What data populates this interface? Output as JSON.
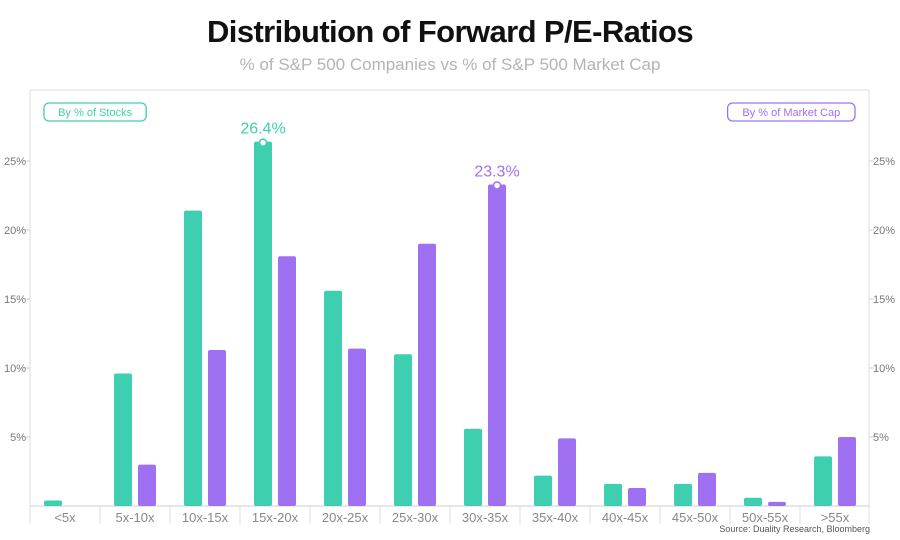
{
  "title": "Distribution of Forward P/E-Ratios",
  "subtitle": "% of S&P 500 Companies vs % of S&P 500 Market Cap",
  "source": "Source: Duality Research, Bloomberg",
  "colors": {
    "stocks": "#3ecfb0",
    "market_cap": "#a070f3"
  },
  "chart_data": {
    "type": "bar",
    "categories": [
      "<5x",
      "5x-10x",
      "10x-15x",
      "15x-20x",
      "20x-25x",
      "25x-30x",
      "30x-35x",
      "35x-40x",
      "40x-45x",
      "45x-50x",
      "50x-55x",
      ">55x"
    ],
    "series": [
      {
        "name": "By % of Stocks",
        "values": [
          0.4,
          9.6,
          21.4,
          26.4,
          15.6,
          11.0,
          5.6,
          2.2,
          1.6,
          1.6,
          0.6,
          3.6
        ]
      },
      {
        "name": "By % of Market Cap",
        "values": [
          0.0,
          3.0,
          11.3,
          18.1,
          11.4,
          19.0,
          23.3,
          4.9,
          1.3,
          2.4,
          0.3,
          5.0
        ]
      }
    ],
    "ylim": [
      0,
      30
    ],
    "yticks": [
      5,
      10,
      15,
      20,
      25
    ],
    "ytick_labels": [
      "5%",
      "10%",
      "15%",
      "20%",
      "25%"
    ],
    "annotations": [
      {
        "series": 0,
        "category": "15x-20x",
        "label": "26.4%"
      },
      {
        "series": 1,
        "category": "30x-35x",
        "label": "23.3%"
      }
    ],
    "legend": [
      "By % of Stocks",
      "By % of Market Cap"
    ],
    "legend_placement": "top-left and top-right",
    "grid": false
  }
}
